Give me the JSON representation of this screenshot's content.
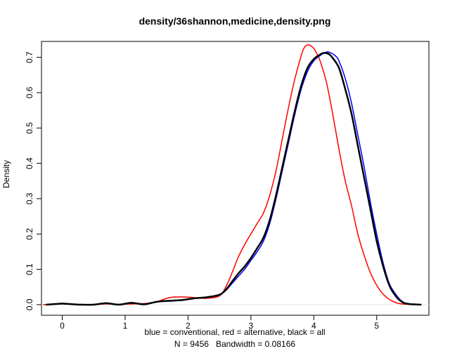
{
  "chart_data": {
    "type": "line",
    "title": "density/36shannon,medicine,density.png",
    "xlabel_lines": [
      "blue = conventional, red = alternative, black = all",
      "N = 9456   Bandwidth = 0.08166"
    ],
    "ylabel": "Density",
    "xlim": [
      -0.33,
      5.83
    ],
    "ylim": [
      -0.03,
      0.745
    ],
    "x_ticks": [
      0,
      1,
      2,
      3,
      4,
      5
    ],
    "x_tick_labels": [
      "0",
      "1",
      "2",
      "3",
      "4",
      "5"
    ],
    "y_ticks": [
      0.0,
      0.1,
      0.2,
      0.3,
      0.4,
      0.5,
      0.6,
      0.7
    ],
    "y_tick_labels": [
      "0.0",
      "0.1",
      "0.2",
      "0.3",
      "0.4",
      "0.5",
      "0.6",
      "0.7"
    ],
    "grid": false,
    "series": [
      {
        "color": "#ff0000",
        "line_width": 1.5,
        "x": [
          -0.3,
          -0.1,
          0.0,
          0.1,
          0.3,
          0.5,
          0.7,
          0.9,
          1.1,
          1.3,
          1.5,
          1.7,
          1.9,
          2.1,
          2.3,
          2.5,
          2.6,
          2.7,
          2.8,
          2.9,
          3.0,
          3.1,
          3.2,
          3.3,
          3.4,
          3.5,
          3.6,
          3.7,
          3.8,
          3.85,
          3.9,
          3.95,
          4.0,
          4.05,
          4.1,
          4.2,
          4.3,
          4.4,
          4.5,
          4.6,
          4.7,
          4.8,
          4.9,
          5.0,
          5.1,
          5.2,
          5.3,
          5.4,
          5.5,
          5.7
        ],
        "y": [
          0.0,
          0.001,
          0.002,
          0.001,
          0.0,
          0.0,
          0.002,
          0.001,
          0.002,
          0.003,
          0.008,
          0.02,
          0.022,
          0.02,
          0.018,
          0.025,
          0.05,
          0.09,
          0.135,
          0.17,
          0.2,
          0.23,
          0.26,
          0.31,
          0.38,
          0.47,
          0.56,
          0.64,
          0.705,
          0.728,
          0.735,
          0.733,
          0.725,
          0.71,
          0.69,
          0.63,
          0.54,
          0.44,
          0.35,
          0.28,
          0.2,
          0.14,
          0.09,
          0.055,
          0.03,
          0.015,
          0.006,
          0.002,
          0.001,
          0.0
        ]
      },
      {
        "color": "#0000ff",
        "line_width": 1.5,
        "x": [
          -0.25,
          -0.1,
          0.0,
          0.1,
          0.3,
          0.5,
          0.7,
          0.9,
          1.1,
          1.3,
          1.5,
          1.7,
          1.9,
          2.1,
          2.3,
          2.5,
          2.6,
          2.7,
          2.8,
          2.9,
          3.0,
          3.1,
          3.2,
          3.3,
          3.4,
          3.5,
          3.6,
          3.7,
          3.8,
          3.9,
          4.0,
          4.1,
          4.2,
          4.25,
          4.3,
          4.35,
          4.4,
          4.5,
          4.6,
          4.7,
          4.8,
          4.9,
          5.0,
          5.1,
          5.2,
          5.3,
          5.4,
          5.5,
          5.7
        ],
        "y": [
          0.0,
          0.002,
          0.004,
          0.002,
          0.0,
          0.0,
          0.005,
          0.0,
          0.006,
          0.0,
          0.008,
          0.01,
          0.012,
          0.018,
          0.022,
          0.028,
          0.04,
          0.06,
          0.08,
          0.1,
          0.125,
          0.15,
          0.18,
          0.23,
          0.3,
          0.38,
          0.46,
          0.54,
          0.61,
          0.66,
          0.69,
          0.705,
          0.715,
          0.714,
          0.71,
          0.703,
          0.69,
          0.64,
          0.57,
          0.48,
          0.39,
          0.29,
          0.2,
          0.12,
          0.06,
          0.03,
          0.01,
          0.003,
          0.0
        ]
      },
      {
        "color": "#000000",
        "line_width": 2.5,
        "x": [
          -0.25,
          -0.1,
          0.0,
          0.1,
          0.3,
          0.5,
          0.7,
          0.9,
          1.1,
          1.3,
          1.5,
          1.7,
          1.9,
          2.1,
          2.3,
          2.5,
          2.6,
          2.7,
          2.8,
          2.9,
          3.0,
          3.1,
          3.2,
          3.3,
          3.4,
          3.5,
          3.6,
          3.7,
          3.8,
          3.9,
          4.0,
          4.1,
          4.15,
          4.2,
          4.25,
          4.3,
          4.4,
          4.5,
          4.6,
          4.7,
          4.8,
          4.9,
          5.0,
          5.1,
          5.2,
          5.3,
          5.4,
          5.5,
          5.7
        ],
        "y": [
          0.0,
          0.002,
          0.003,
          0.002,
          0.0,
          0.0,
          0.004,
          0.0,
          0.005,
          0.001,
          0.008,
          0.011,
          0.013,
          0.018,
          0.021,
          0.028,
          0.042,
          0.065,
          0.088,
          0.108,
          0.132,
          0.16,
          0.19,
          0.24,
          0.31,
          0.39,
          0.47,
          0.55,
          0.62,
          0.67,
          0.695,
          0.708,
          0.712,
          0.712,
          0.708,
          0.698,
          0.67,
          0.61,
          0.54,
          0.45,
          0.36,
          0.27,
          0.18,
          0.11,
          0.055,
          0.025,
          0.008,
          0.002,
          0.0
        ]
      }
    ]
  }
}
